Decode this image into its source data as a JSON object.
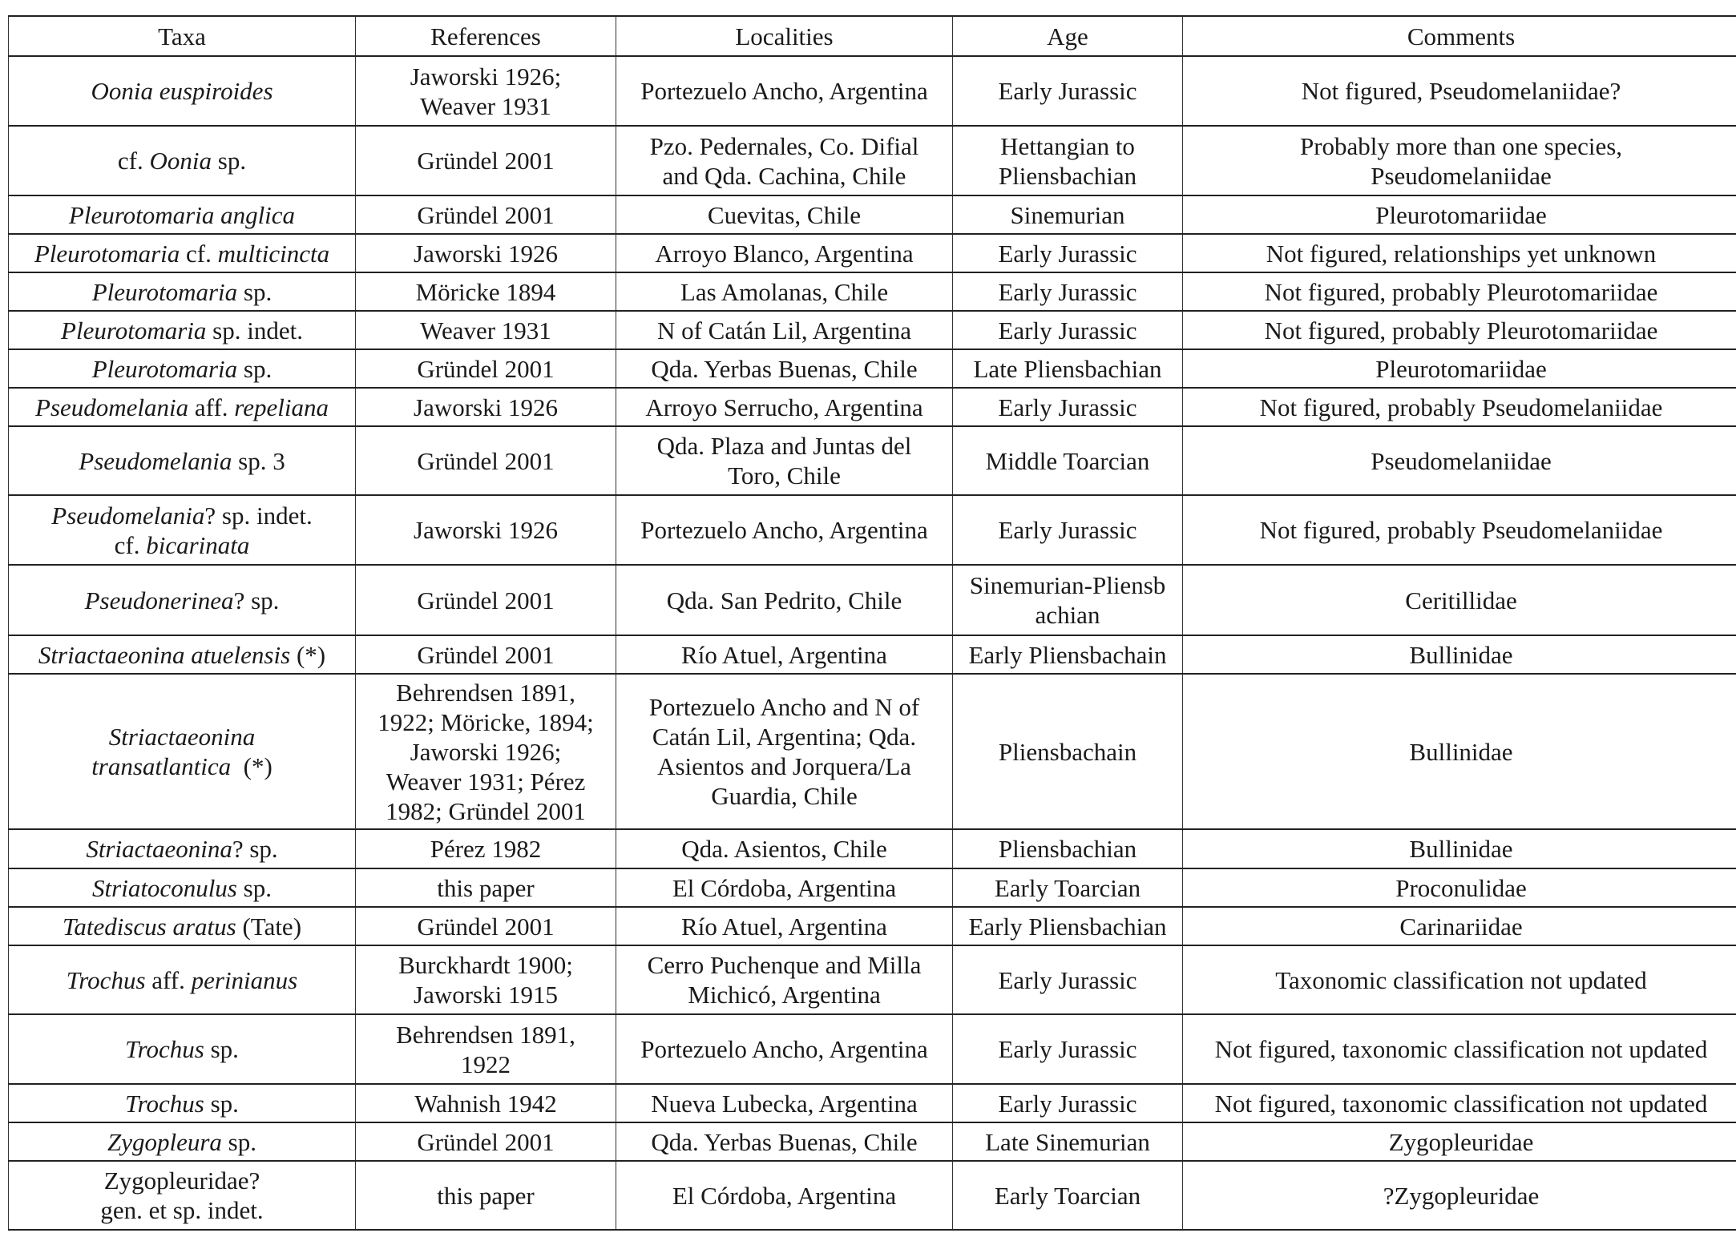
{
  "table": {
    "headers": [
      "Taxa",
      "References",
      "Localities",
      "Age",
      "Comments"
    ],
    "rows": [
      {
        "taxa": [
          [
            {
              "t": "Oonia euspiroides",
              "i": true
            }
          ]
        ],
        "refs": [
          "Jaworski 1926;",
          "Weaver 1931"
        ],
        "loc": [
          "Portezuelo Ancho, Argentina"
        ],
        "age": [
          "Early Jurassic"
        ],
        "comm": [
          "Not figured, Pseudomelaniidae?"
        ]
      },
      {
        "taxa": [
          [
            {
              "t": "cf. ",
              "i": false
            },
            {
              "t": "Oonia",
              "i": true
            },
            {
              "t": " sp.",
              "i": false
            }
          ]
        ],
        "refs": [
          "Gründel 2001"
        ],
        "loc": [
          "Pzo. Pedernales, Co. Difial",
          "and Qda. Cachina, Chile"
        ],
        "age": [
          "Hettangian to",
          "Pliensbachian"
        ],
        "comm": [
          "Probably more than one species,",
          "Pseudomelaniidae"
        ]
      },
      {
        "taxa": [
          [
            {
              "t": "Pleurotomaria anglica",
              "i": true
            }
          ]
        ],
        "refs": [
          "Gründel 2001"
        ],
        "loc": [
          "Cuevitas, Chile"
        ],
        "age": [
          "Sinemurian"
        ],
        "comm": [
          "Pleurotomariidae"
        ]
      },
      {
        "taxa": [
          [
            {
              "t": "Pleurotomaria",
              "i": true
            },
            {
              "t": " cf. ",
              "i": false
            },
            {
              "t": "multicincta",
              "i": true
            }
          ]
        ],
        "refs": [
          "Jaworski 1926"
        ],
        "loc": [
          "Arroyo Blanco, Argentina"
        ],
        "age": [
          "Early Jurassic"
        ],
        "comm": [
          "Not figured, relationships yet unknown"
        ]
      },
      {
        "taxa": [
          [
            {
              "t": "Pleurotomaria",
              "i": true
            },
            {
              "t": " sp.",
              "i": false
            }
          ]
        ],
        "refs": [
          "Möricke 1894"
        ],
        "loc": [
          "Las Amolanas, Chile"
        ],
        "age": [
          "Early Jurassic"
        ],
        "comm": [
          "Not figured, probably Pleurotomariidae"
        ]
      },
      {
        "taxa": [
          [
            {
              "t": "Pleurotomaria",
              "i": true
            },
            {
              "t": " sp. indet.",
              "i": false
            }
          ]
        ],
        "refs": [
          "Weaver 1931"
        ],
        "loc": [
          "N of Catán Lil, Argentina"
        ],
        "age": [
          "Early Jurassic"
        ],
        "comm": [
          "Not figured, probably Pleurotomariidae"
        ]
      },
      {
        "taxa": [
          [
            {
              "t": "Pleurotomaria",
              "i": true
            },
            {
              "t": " sp.",
              "i": false
            }
          ]
        ],
        "refs": [
          "Gründel 2001"
        ],
        "loc": [
          "Qda. Yerbas Buenas, Chile"
        ],
        "age": [
          "Late Pliensbachian"
        ],
        "comm": [
          "Pleurotomariidae"
        ]
      },
      {
        "taxa": [
          [
            {
              "t": "Pseudomelania",
              "i": true
            },
            {
              "t": " aff. ",
              "i": false
            },
            {
              "t": "repeliana",
              "i": true
            }
          ]
        ],
        "refs": [
          "Jaworski 1926"
        ],
        "loc": [
          "Arroyo Serrucho, Argentina"
        ],
        "age": [
          "Early Jurassic"
        ],
        "comm": [
          "Not figured, probably Pseudomelaniidae"
        ]
      },
      {
        "taxa": [
          [
            {
              "t": "Pseudomelania",
              "i": true
            },
            {
              "t": " sp. 3",
              "i": false
            }
          ]
        ],
        "refs": [
          "Gründel 2001"
        ],
        "loc": [
          "Qda. Plaza and Juntas del",
          "Toro, Chile"
        ],
        "age": [
          "Middle Toarcian"
        ],
        "comm": [
          "Pseudomelaniidae"
        ]
      },
      {
        "taxa": [
          [
            {
              "t": "Pseudomelania",
              "i": true
            },
            {
              "t": "? sp. indet.",
              "i": false
            }
          ],
          [
            {
              "t": "cf. ",
              "i": false
            },
            {
              "t": "bicarinata",
              "i": true
            }
          ]
        ],
        "refs": [
          "Jaworski 1926"
        ],
        "loc": [
          "Portezuelo Ancho, Argentina"
        ],
        "age": [
          "Early Jurassic"
        ],
        "comm": [
          "Not figured, probably Pseudomelaniidae"
        ]
      },
      {
        "taxa": [
          [
            {
              "t": "Pseudonerinea",
              "i": true
            },
            {
              "t": "? sp.",
              "i": false
            }
          ]
        ],
        "refs": [
          "Gründel 2001"
        ],
        "loc": [
          "Qda. San Pedrito, Chile"
        ],
        "age": [
          "Sinemurian-Pliensb",
          "achian"
        ],
        "comm": [
          "Ceritillidae"
        ]
      },
      {
        "taxa": [
          [
            {
              "t": "Striactaeonina atuelensis",
              "i": true
            },
            {
              "t": " (*)",
              "i": false
            }
          ]
        ],
        "refs": [
          "Gründel 2001"
        ],
        "loc": [
          "Río Atuel, Argentina"
        ],
        "age": [
          "Early Pliensbachain"
        ],
        "comm": [
          "Bullinidae"
        ]
      },
      {
        "taxa": [
          [
            {
              "t": "Striactaeonina",
              "i": true
            }
          ],
          [
            {
              "t": "transatlantica",
              "i": true
            },
            {
              "t": "  (*)",
              "i": false
            }
          ]
        ],
        "refs": [
          "Behrendsen 1891,",
          "1922; Möricke, 1894;",
          "Jaworski 1926;",
          "Weaver 1931; Pérez",
          "1982; Gründel 2001"
        ],
        "loc": [
          "Portezuelo Ancho and N of",
          "Catán Lil, Argentina; Qda.",
          "Asientos and Jorquera/La",
          "Guardia, Chile"
        ],
        "age": [
          "Pliensbachain"
        ],
        "comm": [
          "Bullinidae"
        ]
      },
      {
        "taxa": [
          [
            {
              "t": "Striactaeonina",
              "i": true
            },
            {
              "t": "? sp.",
              "i": false
            }
          ]
        ],
        "refs": [
          "Pérez 1982"
        ],
        "loc": [
          "Qda. Asientos, Chile"
        ],
        "age": [
          "Pliensbachian"
        ],
        "comm": [
          "Bullinidae"
        ]
      },
      {
        "taxa": [
          [
            {
              "t": "Striatoconulus",
              "i": true
            },
            {
              "t": " sp.",
              "i": false
            }
          ]
        ],
        "refs": [
          "this paper"
        ],
        "loc": [
          "El Córdoba, Argentina"
        ],
        "age": [
          "Early Toarcian"
        ],
        "comm": [
          "Proconulidae"
        ]
      },
      {
        "taxa": [
          [
            {
              "t": "Tatediscus aratus",
              "i": true
            },
            {
              "t": " (Tate)",
              "i": false
            }
          ]
        ],
        "refs": [
          "Gründel 2001"
        ],
        "loc": [
          "Río Atuel, Argentina"
        ],
        "age": [
          "Early Pliensbachian"
        ],
        "comm": [
          "Carinariidae"
        ]
      },
      {
        "taxa": [
          [
            {
              "t": "Trochus",
              "i": true
            },
            {
              "t": " aff. ",
              "i": false
            },
            {
              "t": "perinianus",
              "i": true
            }
          ]
        ],
        "refs": [
          "Burckhardt 1900;",
          "Jaworski 1915"
        ],
        "loc": [
          "Cerro Puchenque and Milla",
          "Michicó, Argentina"
        ],
        "age": [
          "Early Jurassic"
        ],
        "comm": [
          "Taxonomic classification not updated"
        ]
      },
      {
        "taxa": [
          [
            {
              "t": "Trochus",
              "i": true
            },
            {
              "t": " sp.",
              "i": false
            }
          ]
        ],
        "refs": [
          "Behrendsen 1891,",
          "1922"
        ],
        "loc": [
          "Portezuelo Ancho, Argentina"
        ],
        "age": [
          "Early Jurassic"
        ],
        "comm": [
          "Not figured, taxonomic classification not updated"
        ]
      },
      {
        "taxa": [
          [
            {
              "t": "Trochus",
              "i": true
            },
            {
              "t": " sp.",
              "i": false
            }
          ]
        ],
        "refs": [
          "Wahnish 1942"
        ],
        "loc": [
          "Nueva Lubecka, Argentina"
        ],
        "age": [
          "Early Jurassic"
        ],
        "comm": [
          "Not figured, taxonomic classification not updated"
        ]
      },
      {
        "taxa": [
          [
            {
              "t": "Zygopleura",
              "i": true
            },
            {
              "t": " sp.",
              "i": false
            }
          ]
        ],
        "refs": [
          "Gründel 2001"
        ],
        "loc": [
          "Qda. Yerbas Buenas, Chile"
        ],
        "age": [
          "Late Sinemurian"
        ],
        "comm": [
          "Zygopleuridae"
        ]
      },
      {
        "taxa": [
          [
            {
              "t": "Zygopleuridae?",
              "i": false
            }
          ],
          [
            {
              "t": "gen. et sp. indet.",
              "i": false
            }
          ]
        ],
        "refs": [
          "this paper"
        ],
        "loc": [
          "El Córdoba, Argentina"
        ],
        "age": [
          "Early Toarcian"
        ],
        "comm": [
          "?Zygopleuridae"
        ]
      }
    ]
  }
}
